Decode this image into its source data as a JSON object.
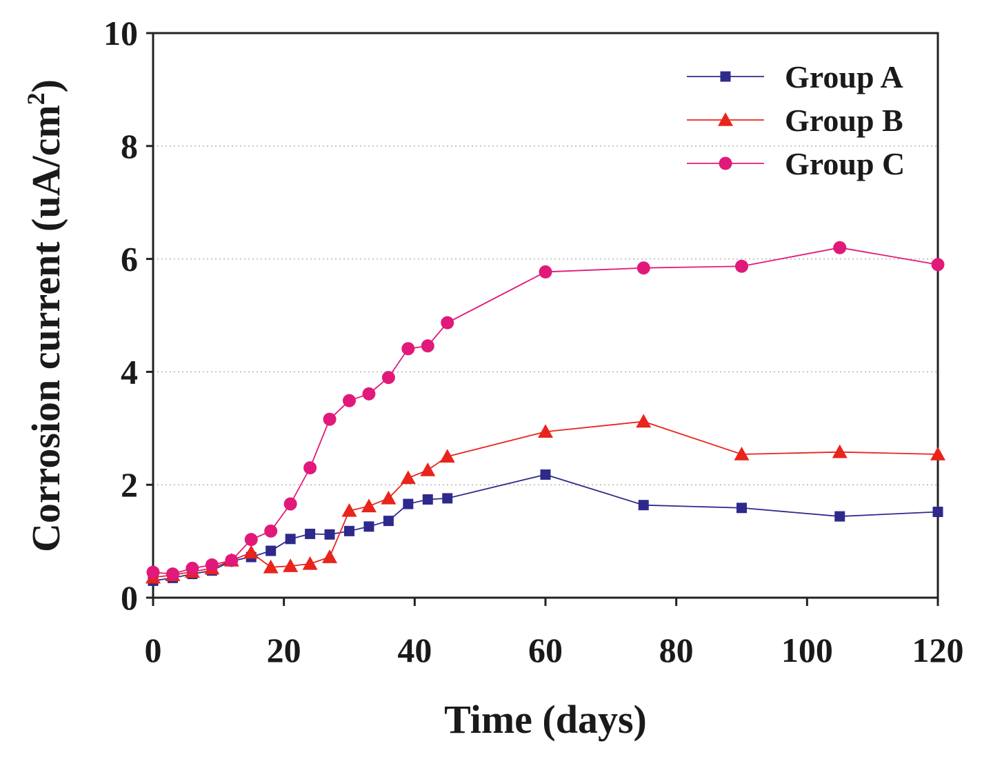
{
  "chart_data": {
    "type": "line",
    "xlabel": "Time (days)",
    "ylabel": "Corrosion current (uA/cm",
    "ylabel_sup": "2",
    "ylabel_close": ")",
    "xlim": [
      0,
      120
    ],
    "ylim": [
      0,
      10
    ],
    "xticks": [
      0,
      20,
      40,
      60,
      80,
      100,
      120
    ],
    "yticks": [
      0,
      2,
      4,
      6,
      8,
      10
    ],
    "grid": "horizontal dotted",
    "legend_position": "top-right",
    "series": [
      {
        "name": "Group A",
        "color": "#2e2a8c",
        "marker": "square",
        "x": [
          0,
          3,
          6,
          9,
          12,
          15,
          18,
          21,
          24,
          27,
          30,
          33,
          36,
          39,
          42,
          45,
          60,
          75,
          90,
          105,
          120
        ],
        "y": [
          0.3,
          0.35,
          0.42,
          0.48,
          0.65,
          0.72,
          0.83,
          1.04,
          1.13,
          1.12,
          1.18,
          1.26,
          1.36,
          1.66,
          1.74,
          1.76,
          2.18,
          1.64,
          1.59,
          1.44,
          1.52
        ]
      },
      {
        "name": "Group B",
        "color": "#e8241c",
        "marker": "triangle",
        "x": [
          0,
          3,
          6,
          9,
          12,
          15,
          18,
          21,
          24,
          27,
          30,
          33,
          36,
          39,
          42,
          45,
          60,
          75,
          90,
          105,
          120
        ],
        "y": [
          0.36,
          0.4,
          0.46,
          0.52,
          0.66,
          0.8,
          0.54,
          0.56,
          0.6,
          0.72,
          1.54,
          1.62,
          1.76,
          2.12,
          2.26,
          2.5,
          2.94,
          3.12,
          2.54,
          2.58,
          2.54
        ]
      },
      {
        "name": "Group C",
        "color": "#e0197a",
        "marker": "circle",
        "x": [
          0,
          3,
          6,
          9,
          12,
          15,
          18,
          21,
          24,
          27,
          30,
          33,
          36,
          39,
          42,
          45,
          60,
          75,
          90,
          105,
          120
        ],
        "y": [
          0.45,
          0.42,
          0.52,
          0.58,
          0.66,
          1.03,
          1.18,
          1.66,
          2.3,
          3.16,
          3.49,
          3.61,
          3.9,
          4.41,
          4.46,
          4.87,
          5.77,
          5.84,
          5.87,
          6.2,
          5.9
        ]
      }
    ]
  }
}
